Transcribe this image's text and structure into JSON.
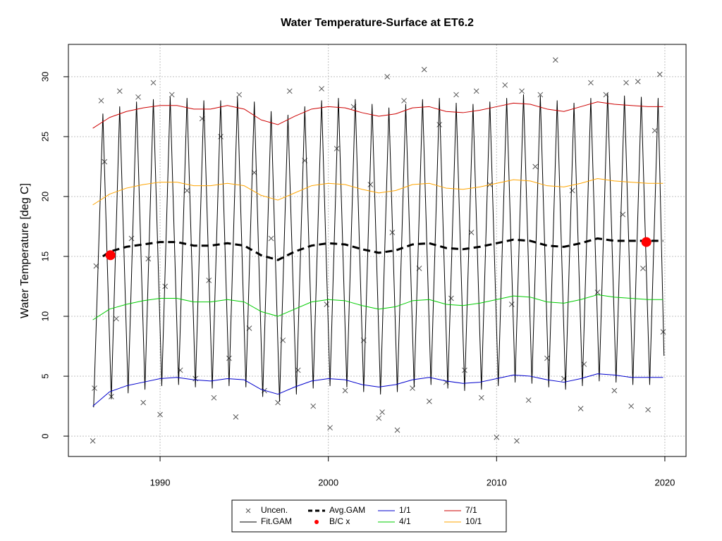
{
  "chart_data": {
    "type": "line",
    "title": "Water Temperature-Surface at ET6.2",
    "y_label": "Water Temperature [deg C]",
    "xlim": [
      1984.55,
      2021.26
    ],
    "ylim": [
      -1.7,
      32.7
    ],
    "xticks": [
      1990,
      2000,
      2010,
      2020
    ],
    "yticks": [
      0,
      5,
      10,
      15,
      20,
      25,
      30
    ],
    "grid": true,
    "legend_position": "bottom",
    "series": [
      {
        "name": "Uncen.",
        "type": "scatter",
        "marker": "x",
        "color": "#555555",
        "x": [
          1986,
          1986.1,
          1986.2,
          1986.5,
          1986.7,
          1987.1,
          1987.4,
          1987.6,
          1988.3,
          1988.7,
          1989,
          1989.3,
          1989.6,
          1990,
          1990.3,
          1990.7,
          1991.2,
          1991.6,
          1992.1,
          1992.5,
          1992.9,
          1993.2,
          1993.6,
          1994.1,
          1994.5,
          1994.7,
          1995.3,
          1995.6,
          1996.2,
          1996.6,
          1997,
          1997.3,
          1997.7,
          1998.2,
          1998.6,
          1999.1,
          1999.6,
          1999.9,
          2000.1,
          2000.5,
          2001,
          2001.5,
          2002.1,
          2002.5,
          2003,
          2003.2,
          2003.5,
          2003.8,
          2004.1,
          2004.5,
          2005,
          2005.4,
          2005.7,
          2006,
          2006.6,
          2007,
          2007.3,
          2007.6,
          2008.1,
          2008.5,
          2008.8,
          2009.1,
          2009.6,
          2010,
          2010.5,
          2010.9,
          2011.2,
          2011.5,
          2011.9,
          2012.3,
          2012.6,
          2013,
          2013.5,
          2014,
          2014.5,
          2015,
          2015.2,
          2015.6,
          2016,
          2016.5,
          2017,
          2017.5,
          2017.7,
          2018,
          2018.4,
          2018.7,
          2019,
          2019.4,
          2019.7,
          2019.9
        ],
        "values": [
          -0.4,
          4,
          14.2,
          28,
          22.9,
          3.3,
          9.8,
          28.8,
          16.5,
          28.3,
          2.8,
          14.8,
          29.5,
          1.8,
          12.5,
          28.5,
          5.5,
          20.5,
          4.8,
          26.5,
          13,
          3.2,
          25,
          6.5,
          1.6,
          28.5,
          9,
          22,
          3.8,
          16.5,
          2.8,
          8,
          28.8,
          5.5,
          23,
          2.5,
          29,
          11,
          0.7,
          24,
          3.8,
          27.5,
          8,
          21,
          1.5,
          2,
          30,
          17,
          0.5,
          28,
          4,
          14,
          30.6,
          2.9,
          26,
          4.5,
          11.5,
          28.5,
          5.5,
          17,
          28.8,
          3.2,
          21,
          -0.1,
          29.3,
          11,
          -0.4,
          28.8,
          3,
          22.5,
          28.5,
          6.5,
          31.4,
          4.8,
          20.5,
          2.3,
          6,
          29.5,
          12,
          28.5,
          3.8,
          18.5,
          29.5,
          2.5,
          29.6,
          14,
          2.2,
          25.5,
          30.2,
          8.7
        ]
      },
      {
        "name": "Fit.GAM",
        "type": "line",
        "color": "#000000",
        "width": 1,
        "x": [
          1986.05,
          1986.6,
          1987.1,
          1987.6,
          1988.1,
          1988.6,
          1989.1,
          1989.6,
          1990.1,
          1990.6,
          1991.1,
          1991.6,
          1992.1,
          1992.6,
          1993.1,
          1993.6,
          1994.1,
          1994.6,
          1995.1,
          1995.6,
          1996.1,
          1996.6,
          1997.1,
          1997.6,
          1998.1,
          1998.6,
          1999.1,
          1999.6,
          2000.1,
          2000.6,
          2001.1,
          2001.6,
          2002.1,
          2002.6,
          2003.1,
          2003.6,
          2004.1,
          2004.6,
          2005.1,
          2005.6,
          2006.1,
          2006.6,
          2007.1,
          2007.6,
          2008.1,
          2008.6,
          2009.1,
          2009.6,
          2010.1,
          2010.6,
          2011.1,
          2011.6,
          2012.1,
          2012.6,
          2013.1,
          2013.6,
          2014.1,
          2014.6,
          2015.1,
          2015.6,
          2016.1,
          2016.6,
          2017.1,
          2017.6,
          2018.1,
          2018.6,
          2019.1,
          2019.6,
          2019.95
        ],
        "values": [
          2.4,
          26.9,
          3.1,
          27.5,
          3.6,
          27.9,
          3.9,
          28.1,
          4.2,
          28.3,
          4.3,
          28.2,
          4.1,
          28.0,
          4.0,
          28.0,
          4.2,
          28.3,
          4.1,
          27.9,
          3.3,
          27.1,
          2.9,
          26.8,
          3.5,
          27.5,
          4.0,
          28.0,
          4.2,
          28.2,
          4.1,
          28.1,
          3.7,
          27.7,
          3.5,
          27.4,
          3.7,
          27.7,
          4.1,
          28.1,
          4.3,
          28.2,
          4.0,
          27.8,
          3.8,
          27.7,
          3.9,
          27.9,
          4.2,
          28.2,
          4.5,
          28.5,
          4.4,
          28.4,
          4.1,
          28.0,
          3.9,
          27.8,
          4.2,
          28.2,
          4.6,
          28.6,
          4.5,
          28.4,
          4.3,
          28.3,
          4.3,
          28.2,
          6.7
        ]
      },
      {
        "name": "Avg.GAM",
        "type": "line",
        "color": "#000000",
        "width": 3,
        "dash": true,
        "x": [
          1986.6,
          1987,
          1988,
          1989,
          1990,
          1991,
          1992,
          1993,
          1994,
          1995,
          1996,
          1997,
          1998,
          1999,
          2000,
          2001,
          2002,
          2003,
          2004,
          2005,
          2006,
          2007,
          2008,
          2009,
          2010,
          2011,
          2012,
          2013,
          2014,
          2015,
          2016,
          2017,
          2018,
          2019,
          2019.9
        ],
        "values": [
          15.0,
          15.4,
          15.8,
          16.0,
          16.2,
          16.2,
          15.9,
          15.9,
          16.1,
          15.9,
          15.1,
          14.7,
          15.4,
          15.9,
          16.1,
          16.0,
          15.6,
          15.3,
          15.5,
          16.0,
          16.1,
          15.7,
          15.6,
          15.8,
          16.1,
          16.4,
          16.3,
          15.9,
          15.8,
          16.1,
          16.5,
          16.3,
          16.3,
          16.3,
          16.3
        ]
      },
      {
        "name": "B/C x",
        "type": "scatter",
        "marker": "dot",
        "color": "#ff0000",
        "x": [
          1987.05,
          2018.9
        ],
        "values": [
          15.1,
          16.2
        ]
      },
      {
        "name": "1/1",
        "type": "line",
        "color": "#0000cd",
        "width": 1,
        "x": [
          1986,
          1987,
          1988,
          1989,
          1990,
          1991,
          1992,
          1993,
          1994,
          1995,
          1996,
          1997,
          1998,
          1999,
          2000,
          2001,
          2002,
          2003,
          2004,
          2005,
          2006,
          2007,
          2008,
          2009,
          2010,
          2011,
          2012,
          2013,
          2014,
          2015,
          2016,
          2017,
          2018,
          2019,
          2019.9
        ],
        "values": [
          2.5,
          3.7,
          4.2,
          4.5,
          4.8,
          4.9,
          4.7,
          4.6,
          4.8,
          4.7,
          3.9,
          3.5,
          4.1,
          4.6,
          4.8,
          4.7,
          4.3,
          4.1,
          4.3,
          4.7,
          4.9,
          4.6,
          4.4,
          4.5,
          4.8,
          5.1,
          5.0,
          4.7,
          4.5,
          4.8,
          5.2,
          5.1,
          4.9,
          4.9,
          4.9
        ]
      },
      {
        "name": "4/1",
        "type": "line",
        "color": "#00cd00",
        "width": 1,
        "x": [
          1986,
          1987,
          1988,
          1989,
          1990,
          1991,
          1992,
          1993,
          1994,
          1995,
          1996,
          1997,
          1998,
          1999,
          2000,
          2001,
          2002,
          2003,
          2004,
          2005,
          2006,
          2007,
          2008,
          2009,
          2010,
          2011,
          2012,
          2013,
          2014,
          2015,
          2016,
          2017,
          2018,
          2019,
          2019.9
        ],
        "values": [
          9.7,
          10.6,
          11.0,
          11.3,
          11.5,
          11.5,
          11.2,
          11.2,
          11.4,
          11.2,
          10.4,
          10.0,
          10.6,
          11.2,
          11.4,
          11.3,
          10.9,
          10.6,
          10.8,
          11.3,
          11.4,
          11.0,
          10.9,
          11.1,
          11.4,
          11.7,
          11.6,
          11.2,
          11.1,
          11.4,
          11.8,
          11.6,
          11.5,
          11.4,
          11.4
        ]
      },
      {
        "name": "7/1",
        "type": "line",
        "color": "#cd0000",
        "width": 1,
        "x": [
          1986,
          1987,
          1988,
          1989,
          1990,
          1991,
          1992,
          1993,
          1994,
          1995,
          1996,
          1997,
          1998,
          1999,
          2000,
          2001,
          2002,
          2003,
          2004,
          2005,
          2006,
          2007,
          2008,
          2009,
          2010,
          2011,
          2012,
          2013,
          2014,
          2015,
          2016,
          2017,
          2018,
          2019,
          2019.9
        ],
        "values": [
          25.7,
          26.6,
          27.1,
          27.4,
          27.6,
          27.6,
          27.3,
          27.3,
          27.6,
          27.3,
          26.4,
          26.0,
          26.7,
          27.3,
          27.5,
          27.4,
          27.0,
          26.7,
          26.9,
          27.4,
          27.5,
          27.1,
          27.0,
          27.2,
          27.5,
          27.8,
          27.7,
          27.3,
          27.1,
          27.5,
          27.9,
          27.7,
          27.6,
          27.5,
          27.5
        ]
      },
      {
        "name": "10/1",
        "type": "line",
        "color": "#ffa500",
        "width": 1,
        "x": [
          1986,
          1987,
          1988,
          1989,
          1990,
          1991,
          1992,
          1993,
          1994,
          1995,
          1996,
          1997,
          1998,
          1999,
          2000,
          2001,
          2002,
          2003,
          2004,
          2005,
          2006,
          2007,
          2008,
          2009,
          2010,
          2011,
          2012,
          2013,
          2014,
          2015,
          2016,
          2017,
          2018,
          2019,
          2019.9
        ],
        "values": [
          19.3,
          20.2,
          20.7,
          21.0,
          21.2,
          21.2,
          20.9,
          20.9,
          21.1,
          20.9,
          20.1,
          19.7,
          20.3,
          20.9,
          21.1,
          21.0,
          20.6,
          20.3,
          20.5,
          21.0,
          21.1,
          20.7,
          20.6,
          20.8,
          21.1,
          21.4,
          21.3,
          20.9,
          20.8,
          21.1,
          21.5,
          21.3,
          21.2,
          21.1,
          21.1
        ]
      }
    ]
  }
}
